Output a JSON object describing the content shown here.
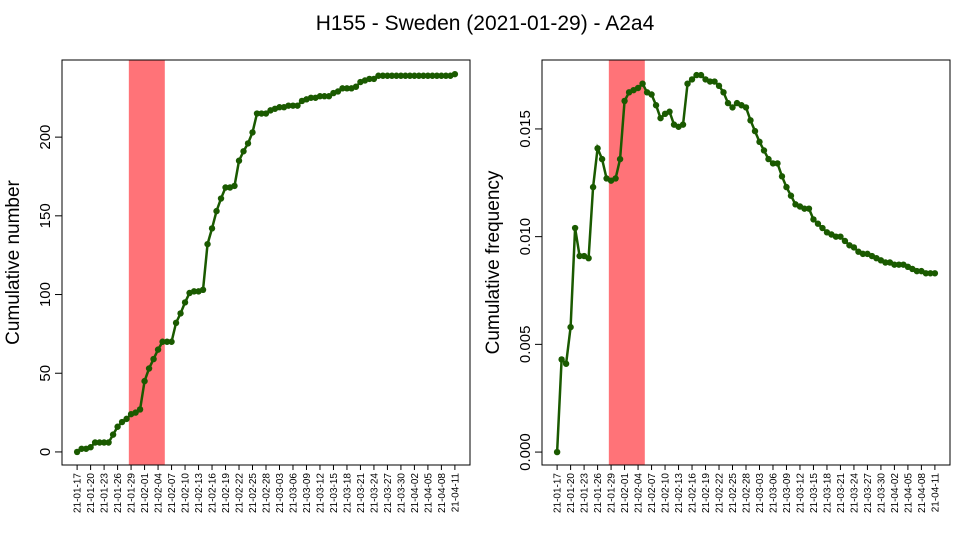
{
  "title": "H155 - Sweden (2021-01-29) - A2a4",
  "chart_data": [
    {
      "type": "line",
      "ylabel": "Cumulative number",
      "color": "#1a5a00",
      "highlight": [
        11.5,
        19.5
      ],
      "highlight_color": "#ff7378",
      "categories": [
        "21-01-17",
        null,
        null,
        "21-01-20",
        null,
        null,
        "21-01-23",
        null,
        null,
        "21-01-26",
        null,
        null,
        "21-01-29",
        null,
        null,
        "21-02-01",
        null,
        null,
        "21-02-04",
        null,
        null,
        "21-02-07",
        null,
        null,
        "21-02-10",
        null,
        null,
        "21-02-13",
        null,
        null,
        "21-02-16",
        null,
        null,
        "21-02-19",
        null,
        null,
        "21-02-22",
        null,
        null,
        "21-02-25",
        null,
        null,
        "21-02-28",
        null,
        null,
        "21-03-03",
        null,
        null,
        "21-03-06",
        null,
        null,
        "21-03-09",
        null,
        null,
        "21-03-12",
        null,
        null,
        "21-03-15",
        null,
        null,
        "21-03-18",
        null,
        null,
        "21-03-21",
        null,
        null,
        "21-03-24",
        null,
        null,
        "21-03-27",
        null,
        null,
        "21-03-30",
        null,
        null,
        "21-04-02",
        null,
        null,
        "21-04-05",
        null,
        null,
        "21-04-08",
        null,
        null,
        "21-04-11"
      ],
      "values": [
        0,
        2,
        2,
        3,
        6,
        6,
        6,
        6,
        11,
        16,
        19,
        21,
        24,
        25,
        27,
        45,
        53,
        59,
        65,
        70,
        70,
        70,
        82,
        88,
        95,
        101,
        102,
        102,
        103,
        132,
        142,
        153,
        161,
        168,
        168,
        169,
        185,
        191,
        196,
        203,
        215,
        215,
        215,
        217,
        218,
        219,
        219,
        220,
        220,
        220,
        223,
        224,
        225,
        225,
        226,
        226,
        226,
        228,
        229,
        231,
        231,
        231,
        232,
        235,
        236,
        237,
        237,
        239,
        239,
        239,
        239,
        239,
        239,
        239,
        239,
        239,
        239,
        239,
        239,
        239,
        239,
        239,
        239,
        239,
        240
      ],
      "ylim": [
        -8.3,
        249
      ],
      "yticks": [
        0,
        50,
        100,
        150,
        200
      ]
    },
    {
      "type": "line",
      "ylabel": "Cumulative frequency",
      "color": "#1a5a00",
      "highlight": [
        11.5,
        19.5
      ],
      "highlight_color": "#ff7378",
      "categories": [
        "21-01-17",
        null,
        null,
        "21-01-20",
        null,
        null,
        "21-01-23",
        null,
        null,
        "21-01-26",
        null,
        null,
        "21-01-29",
        null,
        null,
        "21-02-01",
        null,
        null,
        "21-02-04",
        null,
        null,
        "21-02-07",
        null,
        null,
        "21-02-10",
        null,
        null,
        "21-02-13",
        null,
        null,
        "21-02-16",
        null,
        null,
        "21-02-19",
        null,
        null,
        "21-02-22",
        null,
        null,
        "21-02-25",
        null,
        null,
        "21-02-28",
        null,
        null,
        "21-03-03",
        null,
        null,
        "21-03-06",
        null,
        null,
        "21-03-09",
        null,
        null,
        "21-03-12",
        null,
        null,
        "21-03-15",
        null,
        null,
        "21-03-18",
        null,
        null,
        "21-03-21",
        null,
        null,
        "21-03-24",
        null,
        null,
        "21-03-27",
        null,
        null,
        "21-03-30",
        null,
        null,
        "21-04-02",
        null,
        null,
        "21-04-05",
        null,
        null,
        "21-04-08",
        null,
        null,
        "21-04-11"
      ],
      "values": [
        0,
        0.0043,
        0.0041,
        0.0058,
        0.0104,
        0.0091,
        0.0091,
        0.009,
        0.0123,
        0.0141,
        0.0136,
        0.0127,
        0.0126,
        0.0127,
        0.0136,
        0.0163,
        0.0167,
        0.0168,
        0.0169,
        0.0171,
        0.0167,
        0.0166,
        0.0161,
        0.0155,
        0.0157,
        0.0158,
        0.0152,
        0.0151,
        0.0152,
        0.0171,
        0.0173,
        0.0175,
        0.0175,
        0.0173,
        0.0172,
        0.0172,
        0.017,
        0.0167,
        0.0162,
        0.016,
        0.0162,
        0.0161,
        0.016,
        0.0154,
        0.0149,
        0.0144,
        0.014,
        0.0136,
        0.0134,
        0.0134,
        0.0128,
        0.0123,
        0.0119,
        0.0115,
        0.0114,
        0.0113,
        0.0113,
        0.0108,
        0.0106,
        0.0104,
        0.0102,
        0.0101,
        0.01,
        0.01,
        0.0098,
        0.0096,
        0.0095,
        0.0093,
        0.0092,
        0.0092,
        0.0091,
        0.009,
        0.0089,
        0.0088,
        0.0088,
        0.0087,
        0.0087,
        0.0087,
        0.0086,
        0.0085,
        0.0084,
        0.0084,
        0.0083,
        0.0083,
        0.0083
      ],
      "ylim": [
        -0.0006,
        0.0182
      ],
      "yticks": [
        {
          "value": 0,
          "label": "0.000"
        },
        {
          "value": 0.005,
          "label": "0.005"
        },
        {
          "value": 0.01,
          "label": "0.010"
        },
        {
          "value": 0.015,
          "label": "0.015"
        }
      ]
    }
  ]
}
